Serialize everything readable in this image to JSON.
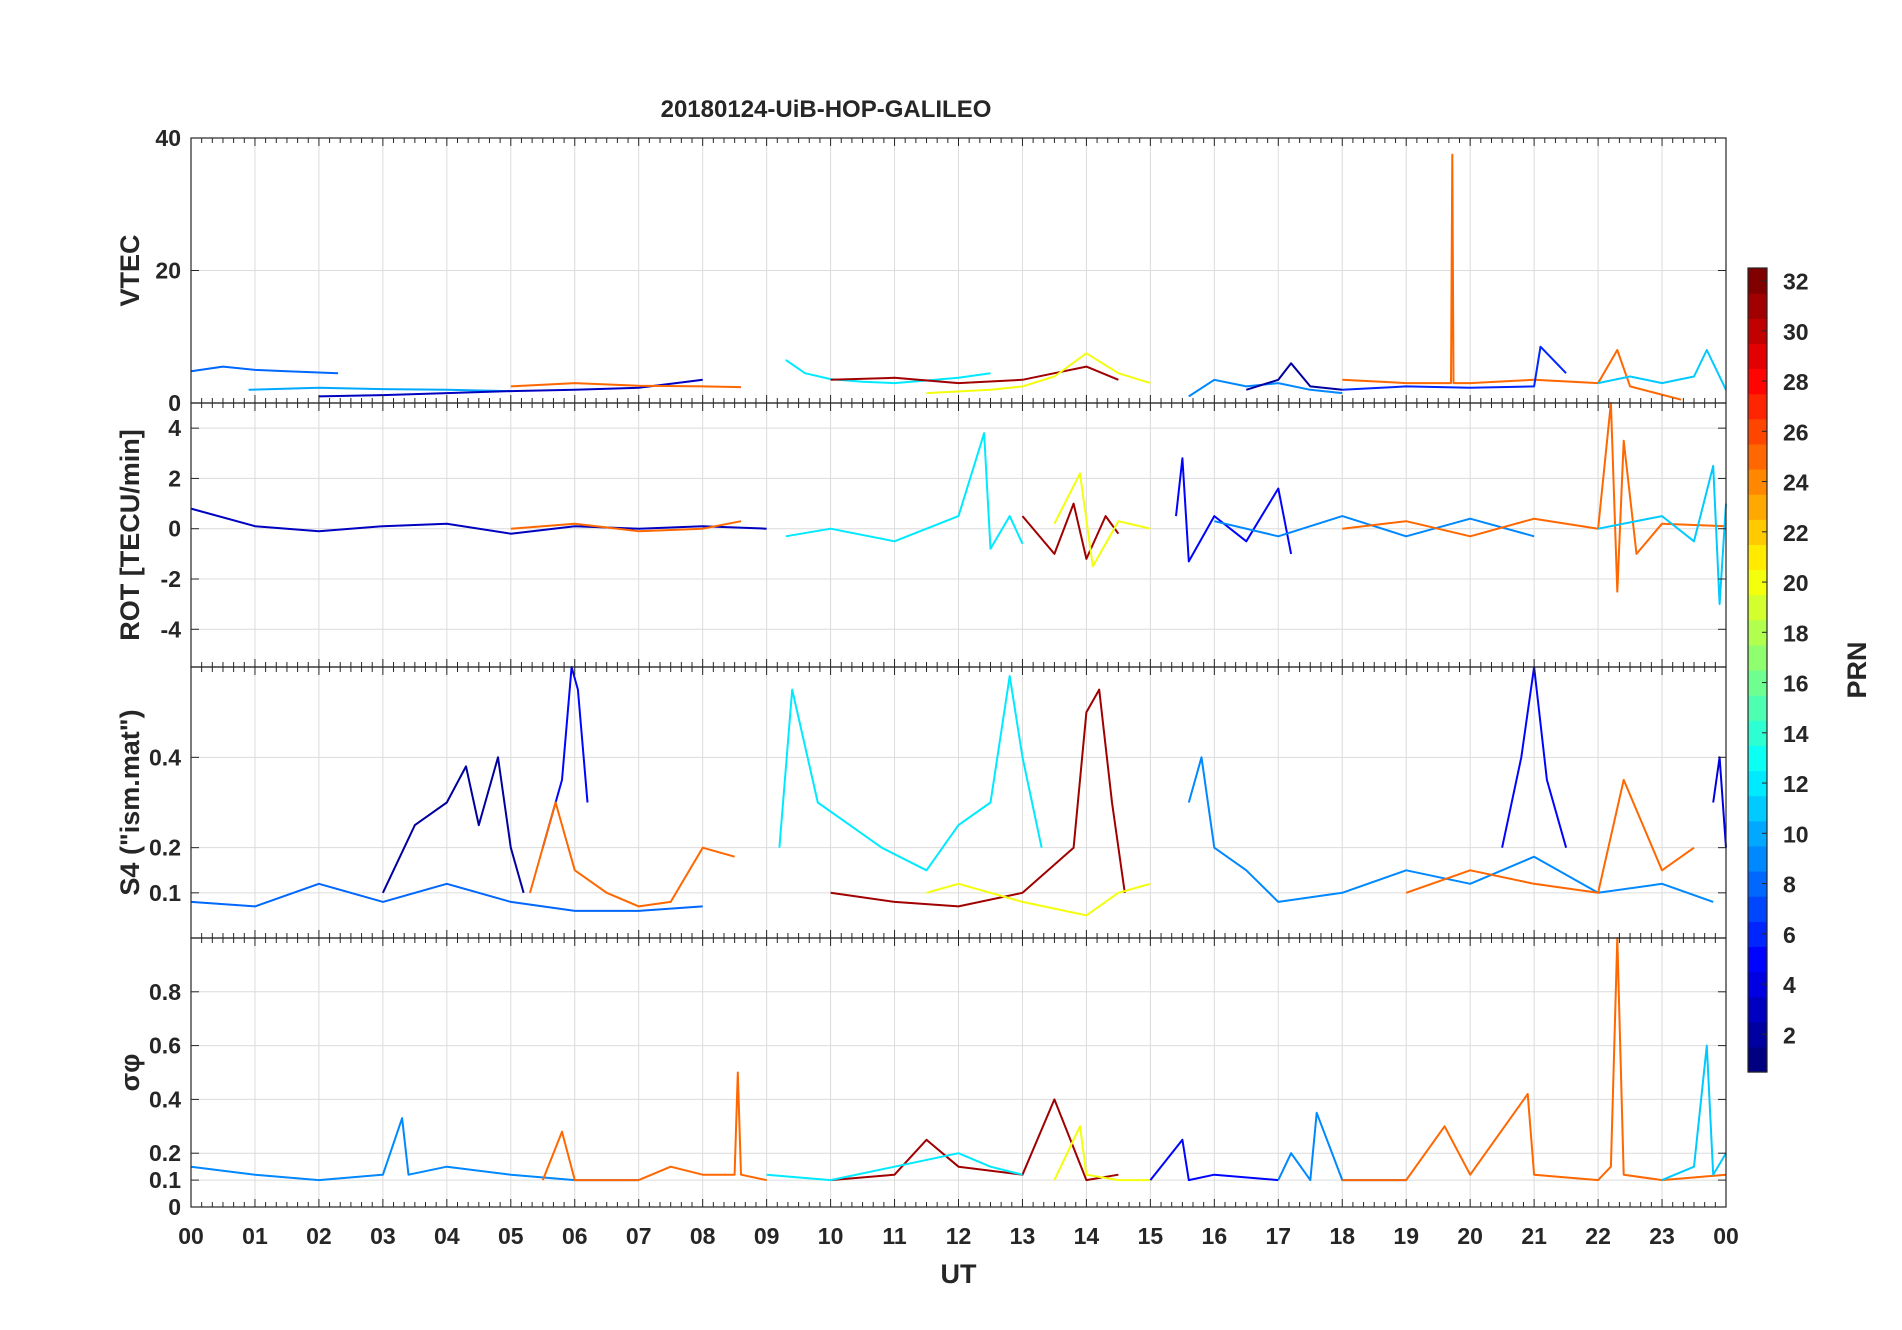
{
  "chart_data": [
    {
      "id": "vtec",
      "type": "line",
      "title": "20180124-UiB-HOP-GALILEO",
      "ylabel": "VTEC",
      "ylim": [
        0,
        40
      ],
      "yticks": [
        0,
        20,
        40
      ],
      "series": [
        {
          "prn": 8,
          "x": [
            0.0,
            0.5,
            1.0,
            1.5,
            2.0,
            2.3
          ],
          "y": [
            4.8,
            5.5,
            5.0,
            4.8,
            4.6,
            4.5
          ]
        },
        {
          "prn": 10,
          "x": [
            0.9,
            2.0,
            3.0,
            4.0,
            5.0
          ],
          "y": [
            2.0,
            2.3,
            2.1,
            2.0,
            1.8
          ]
        },
        {
          "prn": 3,
          "x": [
            2.0,
            3.0,
            4.0,
            5.0,
            6.0,
            7.0,
            8.0
          ],
          "y": [
            1.0,
            1.2,
            1.5,
            1.8,
            2.0,
            2.3,
            3.5
          ]
        },
        {
          "prn": 25,
          "x": [
            5.0,
            6.0,
            7.0,
            8.0,
            8.6
          ],
          "y": [
            2.5,
            3.0,
            2.6,
            2.5,
            2.4
          ]
        },
        {
          "prn": 12,
          "x": [
            9.3,
            9.6,
            10.0,
            10.5,
            11.0,
            11.5,
            12.0,
            12.5
          ],
          "y": [
            6.5,
            4.5,
            3.6,
            3.2,
            3.0,
            3.4,
            3.8,
            4.5
          ]
        },
        {
          "prn": 31,
          "x": [
            10.0,
            11.0,
            12.0,
            13.0,
            13.5,
            14.0,
            14.5
          ],
          "y": [
            3.5,
            3.8,
            3.0,
            3.5,
            4.5,
            5.5,
            3.5
          ]
        },
        {
          "prn": 20,
          "x": [
            11.5,
            12.5,
            13.0,
            13.5,
            14.0,
            14.5,
            15.0
          ],
          "y": [
            1.5,
            2.0,
            2.5,
            4.0,
            7.5,
            4.5,
            3.0
          ]
        },
        {
          "prn": 9,
          "x": [
            15.6,
            16.0,
            16.5,
            17.0,
            17.5,
            18.0
          ],
          "y": [
            1.0,
            3.5,
            2.5,
            3.0,
            2.0,
            1.5
          ]
        },
        {
          "prn": 2,
          "x": [
            16.5,
            17.0,
            17.2,
            17.5,
            18.0
          ],
          "y": [
            2.0,
            3.5,
            6.0,
            2.5,
            2.0
          ]
        },
        {
          "prn": 25,
          "x": [
            18.0,
            19.0,
            19.7,
            19.72,
            19.74,
            20.0,
            21.0,
            22.0,
            22.3,
            22.5,
            23.3
          ],
          "y": [
            3.5,
            3.0,
            3.0,
            37.5,
            3.0,
            3.0,
            3.5,
            3.0,
            8.0,
            2.5,
            0.5
          ]
        },
        {
          "prn": 6,
          "x": [
            18.0,
            19.0,
            20.0,
            21.0,
            21.1,
            21.5
          ],
          "y": [
            2.0,
            2.5,
            2.3,
            2.5,
            8.5,
            4.5
          ]
        },
        {
          "prn": 11,
          "x": [
            22.0,
            22.5,
            23.0,
            23.5,
            23.7,
            24.0
          ],
          "y": [
            3.0,
            4.0,
            3.0,
            4.0,
            8.0,
            2.0
          ]
        }
      ]
    },
    {
      "id": "rot",
      "type": "line",
      "ylabel": "ROT [TECU/min]",
      "ylim": [
        -5.5,
        5
      ],
      "yticks": [
        -4,
        -2,
        0,
        2,
        4
      ],
      "series": [
        {
          "prn": 3,
          "x": [
            0.0,
            1.0,
            2.0,
            3.0,
            4.0,
            5.0,
            6.0,
            7.0,
            8.0,
            9.0
          ],
          "y": [
            0.8,
            0.1,
            -0.1,
            0.1,
            0.2,
            -0.2,
            0.1,
            0.0,
            0.1,
            0.0
          ]
        },
        {
          "prn": 25,
          "x": [
            5.0,
            6.0,
            7.0,
            8.0,
            8.6
          ],
          "y": [
            0.0,
            0.2,
            -0.1,
            0.0,
            0.3
          ]
        },
        {
          "prn": 12,
          "x": [
            9.3,
            10.0,
            11.0,
            12.0,
            12.4,
            12.5,
            12.8,
            13.0
          ],
          "y": [
            -0.3,
            0.0,
            -0.5,
            0.5,
            3.8,
            -0.8,
            0.5,
            -0.6
          ]
        },
        {
          "prn": 31,
          "x": [
            13.0,
            13.5,
            13.8,
            14.0,
            14.3,
            14.5
          ],
          "y": [
            0.5,
            -1.0,
            1.0,
            -1.2,
            0.5,
            -0.2
          ]
        },
        {
          "prn": 20,
          "x": [
            13.5,
            13.9,
            14.1,
            14.5,
            15.0
          ],
          "y": [
            0.2,
            2.2,
            -1.5,
            0.3,
            0.0
          ]
        },
        {
          "prn": 5,
          "x": [
            15.4,
            15.5,
            15.6,
            16.0,
            16.5,
            17.0,
            17.2
          ],
          "y": [
            0.5,
            2.8,
            -1.3,
            0.5,
            -0.5,
            1.6,
            -1.0
          ]
        },
        {
          "prn": 9,
          "x": [
            16.0,
            17.0,
            18.0,
            19.0,
            20.0,
            21.0
          ],
          "y": [
            0.3,
            -0.3,
            0.5,
            -0.3,
            0.4,
            -0.3
          ]
        },
        {
          "prn": 25,
          "x": [
            18.0,
            19.0,
            20.0,
            21.0,
            22.0,
            22.2,
            22.3,
            22.4,
            22.6,
            23.0,
            24.0
          ],
          "y": [
            0.0,
            0.3,
            -0.3,
            0.4,
            0.0,
            5.0,
            -2.5,
            3.5,
            -1.0,
            0.2,
            0.1
          ]
        },
        {
          "prn": 11,
          "x": [
            22.0,
            23.0,
            23.5,
            23.8,
            23.9,
            24.0
          ],
          "y": [
            0.0,
            0.5,
            -0.5,
            2.5,
            -3.0,
            1.0
          ]
        }
      ]
    },
    {
      "id": "s4",
      "type": "line",
      "ylabel": "S4 (\"ism.mat\")",
      "ylim": [
        0,
        0.6
      ],
      "yticks": [
        0.1,
        0.2,
        0.4
      ],
      "series": [
        {
          "prn": 8,
          "x": [
            0.0,
            1.0,
            2.0,
            3.0,
            4.0,
            5.0,
            6.0,
            7.0,
            8.0
          ],
          "y": [
            0.08,
            0.07,
            0.12,
            0.08,
            0.12,
            0.08,
            0.06,
            0.06,
            0.07
          ]
        },
        {
          "prn": 2,
          "x": [
            3.0,
            3.5,
            4.0,
            4.3,
            4.5,
            4.8,
            5.0,
            5.2
          ],
          "y": [
            0.1,
            0.25,
            0.3,
            0.38,
            0.25,
            0.4,
            0.2,
            0.1
          ]
        },
        {
          "prn": 5,
          "x": [
            5.5,
            5.8,
            5.95,
            6.05,
            6.2
          ],
          "y": [
            0.2,
            0.35,
            0.6,
            0.55,
            0.3
          ]
        },
        {
          "prn": 25,
          "x": [
            5.3,
            5.7,
            6.0,
            6.5,
            7.0,
            7.5,
            8.0,
            8.5
          ],
          "y": [
            0.1,
            0.3,
            0.15,
            0.1,
            0.07,
            0.08,
            0.2,
            0.18
          ]
        },
        {
          "prn": 12,
          "x": [
            9.2,
            9.4,
            9.8,
            10.3,
            10.8,
            11.5,
            12.0,
            12.5,
            12.8,
            13.0,
            13.3
          ],
          "y": [
            0.2,
            0.55,
            0.3,
            0.25,
            0.2,
            0.15,
            0.25,
            0.3,
            0.58,
            0.4,
            0.2
          ]
        },
        {
          "prn": 31,
          "x": [
            10.0,
            11.0,
            12.0,
            13.0,
            13.8,
            14.0,
            14.2,
            14.4,
            14.6
          ],
          "y": [
            0.1,
            0.08,
            0.07,
            0.1,
            0.2,
            0.5,
            0.55,
            0.3,
            0.1
          ]
        },
        {
          "prn": 20,
          "x": [
            11.5,
            12.0,
            13.0,
            14.0,
            14.5,
            15.0
          ],
          "y": [
            0.1,
            0.12,
            0.08,
            0.05,
            0.1,
            0.12
          ]
        },
        {
          "prn": 9,
          "x": [
            15.6,
            15.8,
            16.0,
            16.5,
            17.0,
            18.0,
            19.0,
            20.0,
            21.0,
            22.0,
            23.0,
            23.8
          ],
          "y": [
            0.3,
            0.4,
            0.2,
            0.15,
            0.08,
            0.1,
            0.15,
            0.12,
            0.18,
            0.1,
            0.12,
            0.08
          ]
        },
        {
          "prn": 5,
          "x": [
            20.5,
            20.8,
            21.0,
            21.2,
            21.5
          ],
          "y": [
            0.2,
            0.4,
            0.6,
            0.35,
            0.2
          ]
        },
        {
          "prn": 25,
          "x": [
            19.0,
            20.0,
            21.0,
            22.0,
            22.4,
            23.0,
            23.5
          ],
          "y": [
            0.1,
            0.15,
            0.12,
            0.1,
            0.35,
            0.15,
            0.2
          ]
        },
        {
          "prn": 4,
          "x": [
            23.8,
            23.9,
            24.0
          ],
          "y": [
            0.3,
            0.4,
            0.2
          ]
        }
      ]
    },
    {
      "id": "sigma_phi",
      "type": "line",
      "ylabel": "σφ",
      "ylim": [
        0,
        1
      ],
      "yticks": [
        0,
        0.1,
        0.2,
        0.4,
        0.6,
        0.8
      ],
      "xlabel": "UT",
      "xticks": [
        "00",
        "01",
        "02",
        "03",
        "04",
        "05",
        "06",
        "07",
        "08",
        "09",
        "10",
        "11",
        "12",
        "13",
        "14",
        "15",
        "16",
        "17",
        "18",
        "19",
        "20",
        "21",
        "22",
        "23",
        "00"
      ],
      "series": [
        {
          "prn": 9,
          "x": [
            0.0,
            1.0,
            2.0,
            3.0,
            3.3,
            3.4,
            4.0,
            5.0,
            6.0,
            7.0
          ],
          "y": [
            0.15,
            0.12,
            0.1,
            0.12,
            0.33,
            0.12,
            0.15,
            0.12,
            0.1,
            0.1
          ]
        },
        {
          "prn": 25,
          "x": [
            5.5,
            5.8,
            6.0,
            7.0,
            7.5,
            8.0,
            8.5,
            8.55,
            8.6,
            9.0
          ],
          "y": [
            0.1,
            0.28,
            0.1,
            0.1,
            0.15,
            0.12,
            0.12,
            0.5,
            0.12,
            0.1
          ]
        },
        {
          "prn": 31,
          "x": [
            10.0,
            11.0,
            11.5,
            12.0,
            13.0,
            13.5,
            14.0,
            14.5
          ],
          "y": [
            0.1,
            0.12,
            0.25,
            0.15,
            0.12,
            0.4,
            0.1,
            0.12
          ]
        },
        {
          "prn": 12,
          "x": [
            9.0,
            10.0,
            11.0,
            12.0,
            12.5,
            13.0
          ],
          "y": [
            0.12,
            0.1,
            0.15,
            0.2,
            0.15,
            0.12
          ]
        },
        {
          "prn": 20,
          "x": [
            13.5,
            13.9,
            14.0,
            14.5,
            15.0
          ],
          "y": [
            0.1,
            0.3,
            0.12,
            0.1,
            0.1
          ]
        },
        {
          "prn": 5,
          "x": [
            15.0,
            15.5,
            15.6,
            16.0,
            17.0
          ],
          "y": [
            0.1,
            0.25,
            0.1,
            0.12,
            0.1
          ]
        },
        {
          "prn": 9,
          "x": [
            17.0,
            17.2,
            17.5,
            17.6,
            18.0,
            19.0
          ],
          "y": [
            0.1,
            0.2,
            0.1,
            0.35,
            0.1,
            0.1
          ]
        },
        {
          "prn": 25,
          "x": [
            18.0,
            19.0,
            19.6,
            20.0,
            20.9,
            21.0,
            22.0,
            22.2,
            22.3,
            22.4,
            23.0,
            24.0
          ],
          "y": [
            0.1,
            0.1,
            0.3,
            0.12,
            0.42,
            0.12,
            0.1,
            0.15,
            1.0,
            0.12,
            0.1,
            0.12
          ]
        },
        {
          "prn": 11,
          "x": [
            23.0,
            23.5,
            23.7,
            23.8,
            24.0
          ],
          "y": [
            0.1,
            0.15,
            0.6,
            0.12,
            0.2
          ]
        }
      ]
    }
  ],
  "colorbar": {
    "label": "PRN",
    "range": [
      1,
      32
    ],
    "ticks": [
      2,
      4,
      6,
      8,
      10,
      12,
      14,
      16,
      18,
      20,
      22,
      24,
      26,
      28,
      30,
      32
    ],
    "colormap": "jet"
  }
}
